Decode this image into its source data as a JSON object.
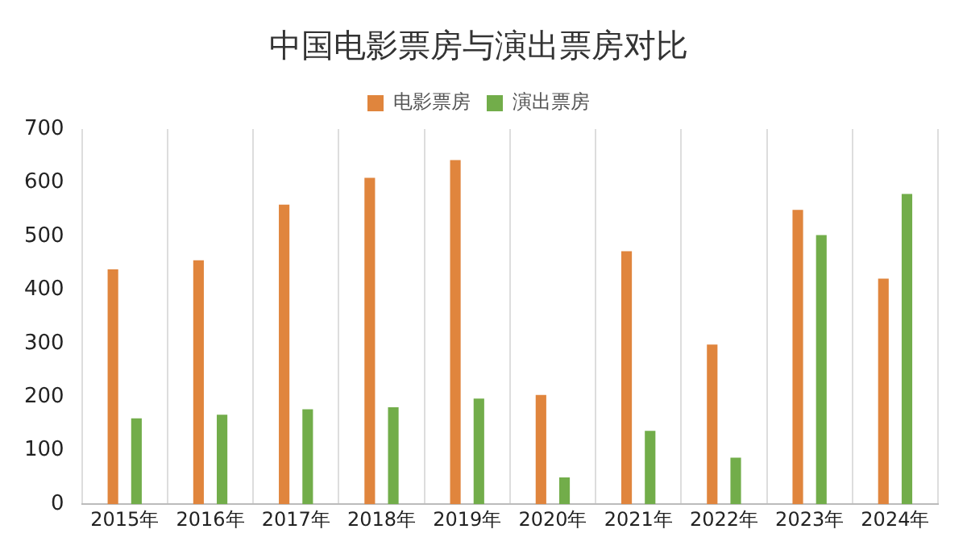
{
  "chart_data": {
    "type": "bar",
    "title": "中国电影票房与演出票房对比",
    "categories": [
      "2015年",
      "2016年",
      "2017年",
      "2018年",
      "2019年",
      "2020年",
      "2021年",
      "2022年",
      "2023年",
      "2024年"
    ],
    "series": [
      {
        "name": "电影票房",
        "color": "#e0853d",
        "values": [
          438,
          455,
          559,
          609,
          642,
          204,
          472,
          298,
          549,
          421
        ]
      },
      {
        "name": "演出票房",
        "color": "#72ad4a",
        "values": [
          160,
          167,
          177,
          181,
          197,
          50,
          137,
          87,
          502,
          579
        ]
      }
    ],
    "ylim": [
      0,
      700
    ],
    "yticks": [
      0,
      100,
      200,
      300,
      400,
      500,
      600,
      700
    ],
    "grid": "x",
    "legend": "top"
  }
}
